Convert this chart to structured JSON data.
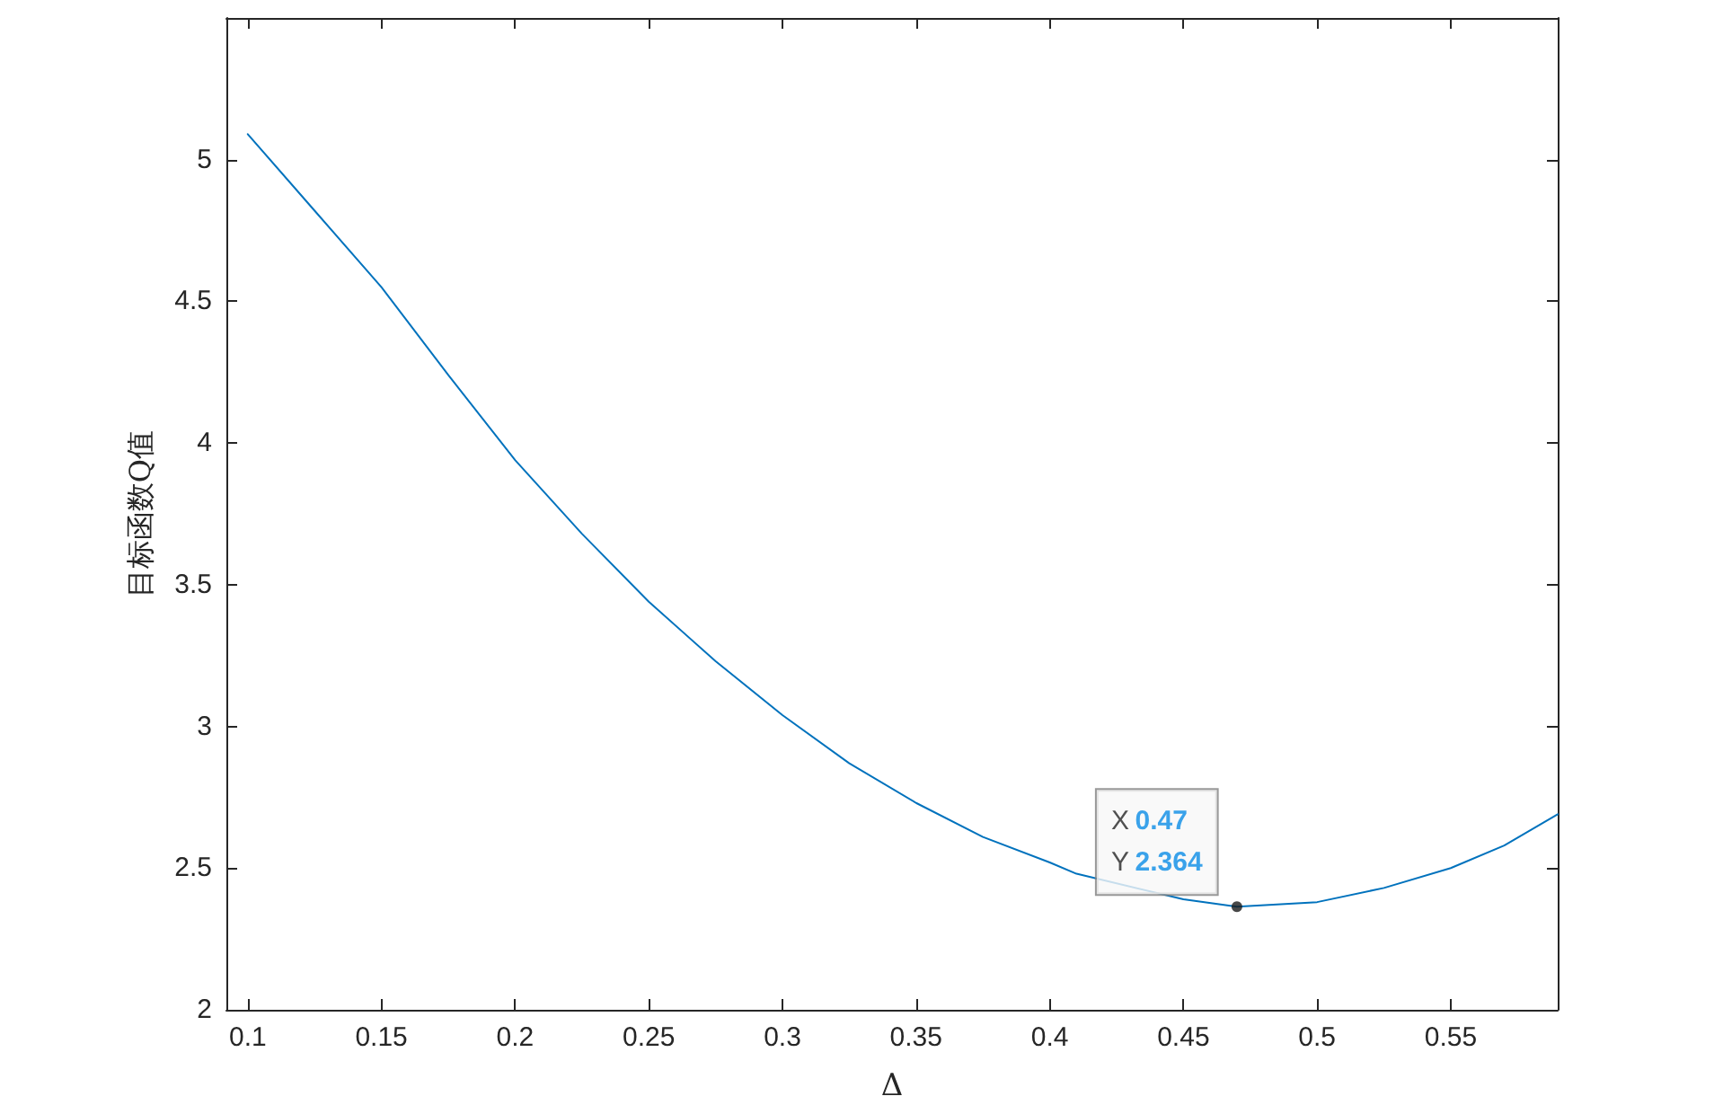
{
  "chart_data": {
    "type": "line",
    "xlabel": "Δ",
    "ylabel": "目标函数Q值",
    "x": [
      0.1,
      0.125,
      0.15,
      0.175,
      0.2,
      0.225,
      0.25,
      0.275,
      0.3,
      0.325,
      0.35,
      0.375,
      0.4,
      0.41,
      0.45,
      0.47,
      0.5,
      0.525,
      0.55,
      0.57,
      0.59
    ],
    "series": [
      {
        "color": "#0072bd",
        "values": [
          5.09,
          4.82,
          4.55,
          4.24,
          3.94,
          3.68,
          3.44,
          3.23,
          3.04,
          2.87,
          2.73,
          2.61,
          2.52,
          2.48,
          2.39,
          2.364,
          2.38,
          2.43,
          2.5,
          2.58,
          2.69
        ]
      }
    ],
    "xlim": [
      0.092,
      0.59
    ],
    "xticks": [
      0.1,
      0.15,
      0.2,
      0.25,
      0.3,
      0.35,
      0.4,
      0.45,
      0.5,
      0.55
    ],
    "ylim": [
      2,
      5.5
    ],
    "yticks": [
      2,
      2.5,
      3,
      3.5,
      4,
      4.5,
      5
    ],
    "annotations": [
      {
        "text": "X 0.47\nY 2.364",
        "x": 0.47,
        "y": 2.364
      }
    ],
    "grid": false,
    "marker": "none",
    "line_style": "solid"
  }
}
